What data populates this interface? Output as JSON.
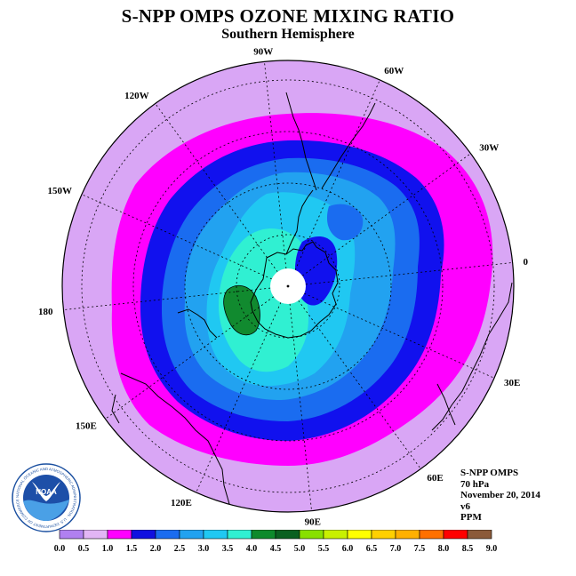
{
  "header": {
    "title": "S-NPP OMPS OZONE MIXING RATIO",
    "subtitle": "Southern Hemisphere"
  },
  "map": {
    "projection": "south-polar-stereographic",
    "longitude_labels": [
      "90W",
      "60W",
      "30W",
      "0",
      "30E",
      "60E",
      "90E",
      "120E",
      "150E",
      "180",
      "150W",
      "120W"
    ],
    "ozone_field_fill_colors": [
      "#d9a6f5",
      "#ff00ff",
      "#1111ee",
      "#1a6cf0",
      "#22a2f0",
      "#20c8f2",
      "#30f0d2",
      "#118a2f",
      "#0c6020"
    ]
  },
  "info": {
    "instrument": "S-NPP OMPS",
    "level": "70 hPa",
    "date": "November 20, 2014",
    "version": "v6",
    "units": "PPM"
  },
  "logo": {
    "text": "NOAA",
    "ring_text": "NATIONAL OCEANIC AND ATMOSPHERIC ADMINISTRATION · U.S. DEPARTMENT OF COMMERCE"
  },
  "colorbar": {
    "ticks": [
      "0.0",
      "0.5",
      "1.0",
      "1.5",
      "2.0",
      "2.5",
      "3.0",
      "3.5",
      "4.0",
      "4.5",
      "5.0",
      "5.5",
      "6.0",
      "6.5",
      "7.0",
      "7.5",
      "8.0",
      "8.5",
      "9.0"
    ],
    "colors": [
      "#b080f0",
      "#e2b5f5",
      "#ff00ff",
      "#1010e0",
      "#1a6cf0",
      "#22a2f0",
      "#20c8f2",
      "#30f0d2",
      "#0e8a2c",
      "#0a6020",
      "#88e000",
      "#c8f000",
      "#ffff00",
      "#ffd000",
      "#ffb000",
      "#ff7000",
      "#ff0000",
      "#8b5a3a"
    ]
  }
}
